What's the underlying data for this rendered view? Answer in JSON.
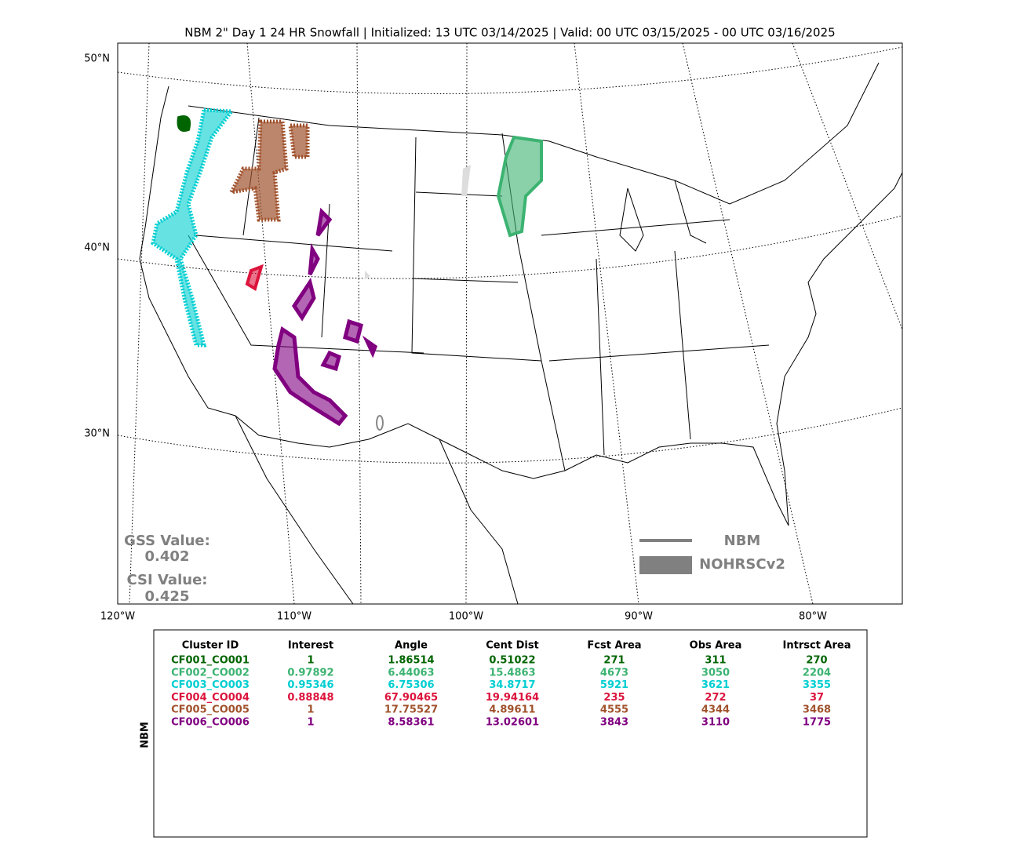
{
  "title": "NBM 2\" Day 1 24 HR Snowfall | Initialized: 13 UTC 03/14/2025 | Valid: 00 UTC 03/15/2025 - 00 UTC 03/16/2025",
  "map": {
    "lat_labels": [
      "50°N",
      "40°N",
      "30°N"
    ],
    "lon_labels": [
      "120°W",
      "110°W",
      "100°W",
      "90°W",
      "80°W"
    ],
    "stats": {
      "gss_label": "GSS Value:",
      "gss_value": "0.402",
      "csi_label": "CSI Value:",
      "csi_value": "0.425"
    },
    "legend": [
      "NBM",
      "NOHRSCv2"
    ]
  },
  "table": {
    "side_label": "NBM",
    "header": [
      "Cluster ID",
      "Interest",
      "Angle",
      "Cent Dist",
      "Fcst Area",
      "Obs Area",
      "Intrsct Area"
    ],
    "rows": [
      {
        "color": "#006400",
        "cells": [
          "CF001_CO001",
          1,
          1.86514,
          0.51022,
          271,
          311,
          270
        ]
      },
      {
        "color": "#3cb371",
        "cells": [
          "CF002_CO002",
          0.97892,
          6.44063,
          15.4863,
          4673,
          3050,
          2204
        ]
      },
      {
        "color": "#00ced1",
        "cells": [
          "CF003_CO003",
          0.95346,
          6.75306,
          34.8717,
          5921,
          3621,
          3355
        ]
      },
      {
        "color": "#dc143c",
        "cells": [
          "CF004_CO004",
          0.88848,
          67.90465,
          19.94164,
          235,
          272,
          37
        ]
      },
      {
        "color": "#a0522d",
        "cells": [
          "CF005_CO005",
          1,
          17.75527,
          4.89611,
          4555,
          4344,
          3468
        ]
      },
      {
        "color": "#800080",
        "cells": [
          "CF006_CO006",
          1,
          8.58361,
          13.02601,
          3843,
          3110,
          1775
        ]
      }
    ]
  }
}
